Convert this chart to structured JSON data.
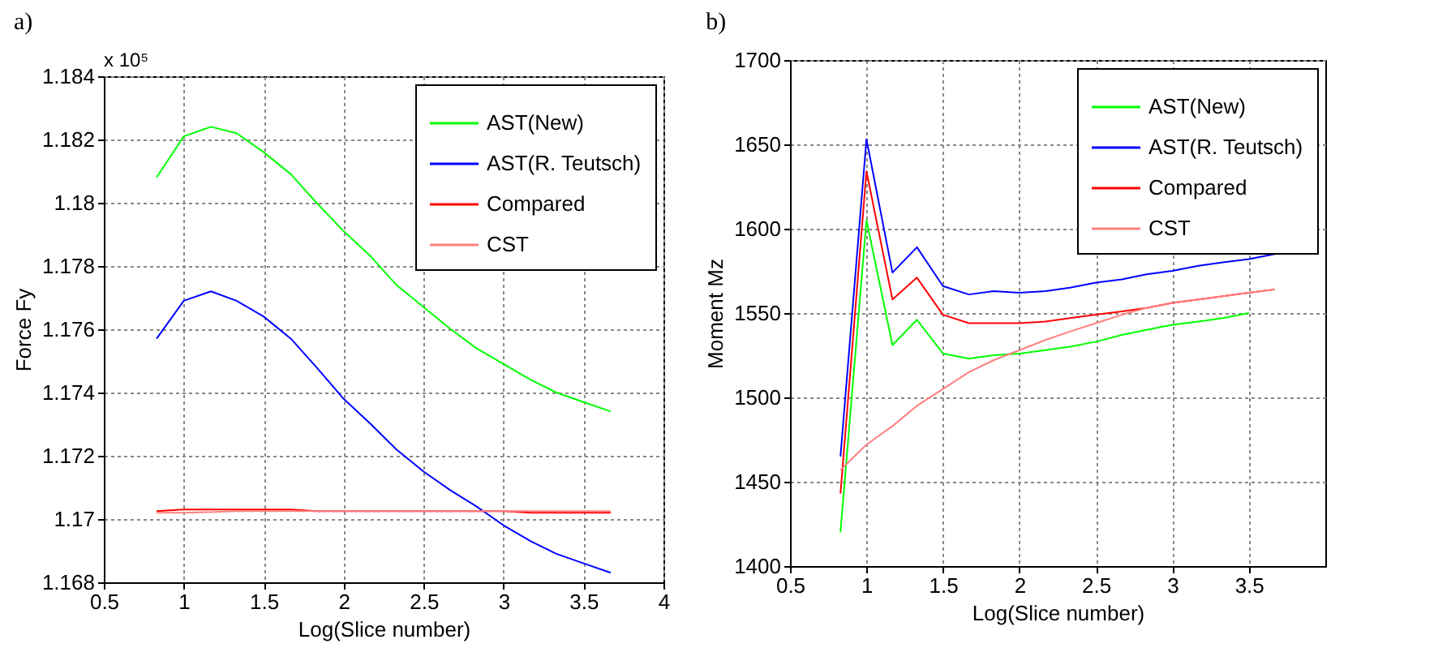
{
  "chart_data": [
    {
      "type": "line",
      "title": "a)",
      "xlabel": "Log(Slice number)",
      "ylabel": "Force Fy",
      "annotations": [
        "x 10⁵"
      ],
      "x": [
        0.83,
        1,
        1.17,
        1.33,
        1.5,
        1.67,
        1.83,
        2,
        2.17,
        2.33,
        2.5,
        2.67,
        2.83,
        3,
        3.17,
        3.33,
        3.5,
        3.67
      ],
      "series": [
        {
          "name": "AST(New)",
          "color": "#00ff00",
          "values": [
            1.1808,
            1.1821,
            1.1824,
            1.1822,
            1.1816,
            1.1809,
            1.18,
            1.1791,
            1.1783,
            1.1774,
            1.1767,
            1.176,
            1.1754,
            1.1749,
            1.1744,
            1.174,
            1.1737,
            1.1734
          ]
        },
        {
          "name": "AST(R. Teutsch)",
          "color": "#0000ff",
          "values": [
            1.1757,
            1.1769,
            1.1772,
            1.1769,
            1.1764,
            1.1757,
            1.1748,
            1.1738,
            1.173,
            1.1722,
            1.1715,
            1.1709,
            1.1704,
            1.1698,
            1.1693,
            1.1689,
            1.1686,
            1.1683
          ]
        },
        {
          "name": "Compared",
          "color": "#ff0000",
          "values": [
            1.17025,
            1.1703,
            1.1703,
            1.1703,
            1.1703,
            1.1703,
            1.17025,
            1.17025,
            1.17025,
            1.17025,
            1.17025,
            1.17025,
            1.17025,
            1.17025,
            1.1702,
            1.1702,
            1.1702,
            1.1702
          ]
        },
        {
          "name": "CST",
          "color": "#ff8080",
          "values": [
            1.1702,
            1.1702,
            1.17022,
            1.17025,
            1.17025,
            1.17025,
            1.17025,
            1.17025,
            1.17025,
            1.17025,
            1.17025,
            1.17025,
            1.17025,
            1.17025,
            1.17025,
            1.17025,
            1.17025,
            1.17025
          ]
        }
      ],
      "xlim": [
        0.5,
        4
      ],
      "xticks": [
        0.5,
        1,
        1.5,
        2,
        2.5,
        3,
        3.5,
        4
      ],
      "ylim": [
        1.168,
        1.184
      ],
      "yticks": [
        1.168,
        1.17,
        1.172,
        1.174,
        1.176,
        1.178,
        1.18,
        1.182,
        1.184
      ],
      "grid": true,
      "legend": "top right"
    },
    {
      "type": "line",
      "title": "b)",
      "xlabel": "Log(Slice number)",
      "ylabel": "Moment Mz",
      "x": [
        0.83,
        1,
        1.17,
        1.33,
        1.5,
        1.67,
        1.83,
        2,
        2.17,
        2.33,
        2.5,
        2.67,
        2.83,
        3,
        3.17,
        3.33,
        3.5,
        3.67
      ],
      "series": [
        {
          "name": "AST(New)",
          "color": "#00ff00",
          "values": [
            1420,
            1605,
            1531,
            1546,
            1526,
            1523,
            1525,
            1526,
            1528,
            1530,
            1533,
            1537,
            1540,
            1543,
            1545,
            1547,
            1550,
            null
          ]
        },
        {
          "name": "AST(R. Teutsch)",
          "color": "#0000ff",
          "values": [
            1465,
            1653,
            1574,
            1589,
            1566,
            1561,
            1563,
            1562,
            1563,
            1565,
            1568,
            1570,
            1573,
            1575,
            1578,
            1580,
            1582,
            1585
          ]
        },
        {
          "name": "Compared",
          "color": "#ff0000",
          "values": [
            1443,
            1634,
            1558,
            1571,
            1549,
            1544,
            1544,
            1544,
            1545,
            1547,
            1549,
            1551,
            1553,
            1556,
            1558,
            1560,
            1562,
            1564
          ]
        },
        {
          "name": "CST",
          "color": "#ff8080",
          "values": [
            1457,
            1472,
            1483,
            1495,
            1505,
            1515,
            1522,
            1528,
            1534,
            1539,
            1544,
            1549,
            1553,
            1556,
            1558,
            1560,
            1562,
            1564
          ]
        }
      ],
      "xlim": [
        0.5,
        4
      ],
      "xticks": [
        0.5,
        1,
        1.5,
        2,
        2.5,
        3,
        3.5
      ],
      "ylim": [
        1400,
        1700
      ],
      "yticks": [
        1400,
        1450,
        1500,
        1550,
        1600,
        1650,
        1700
      ],
      "grid": true,
      "legend": "top right"
    }
  ]
}
